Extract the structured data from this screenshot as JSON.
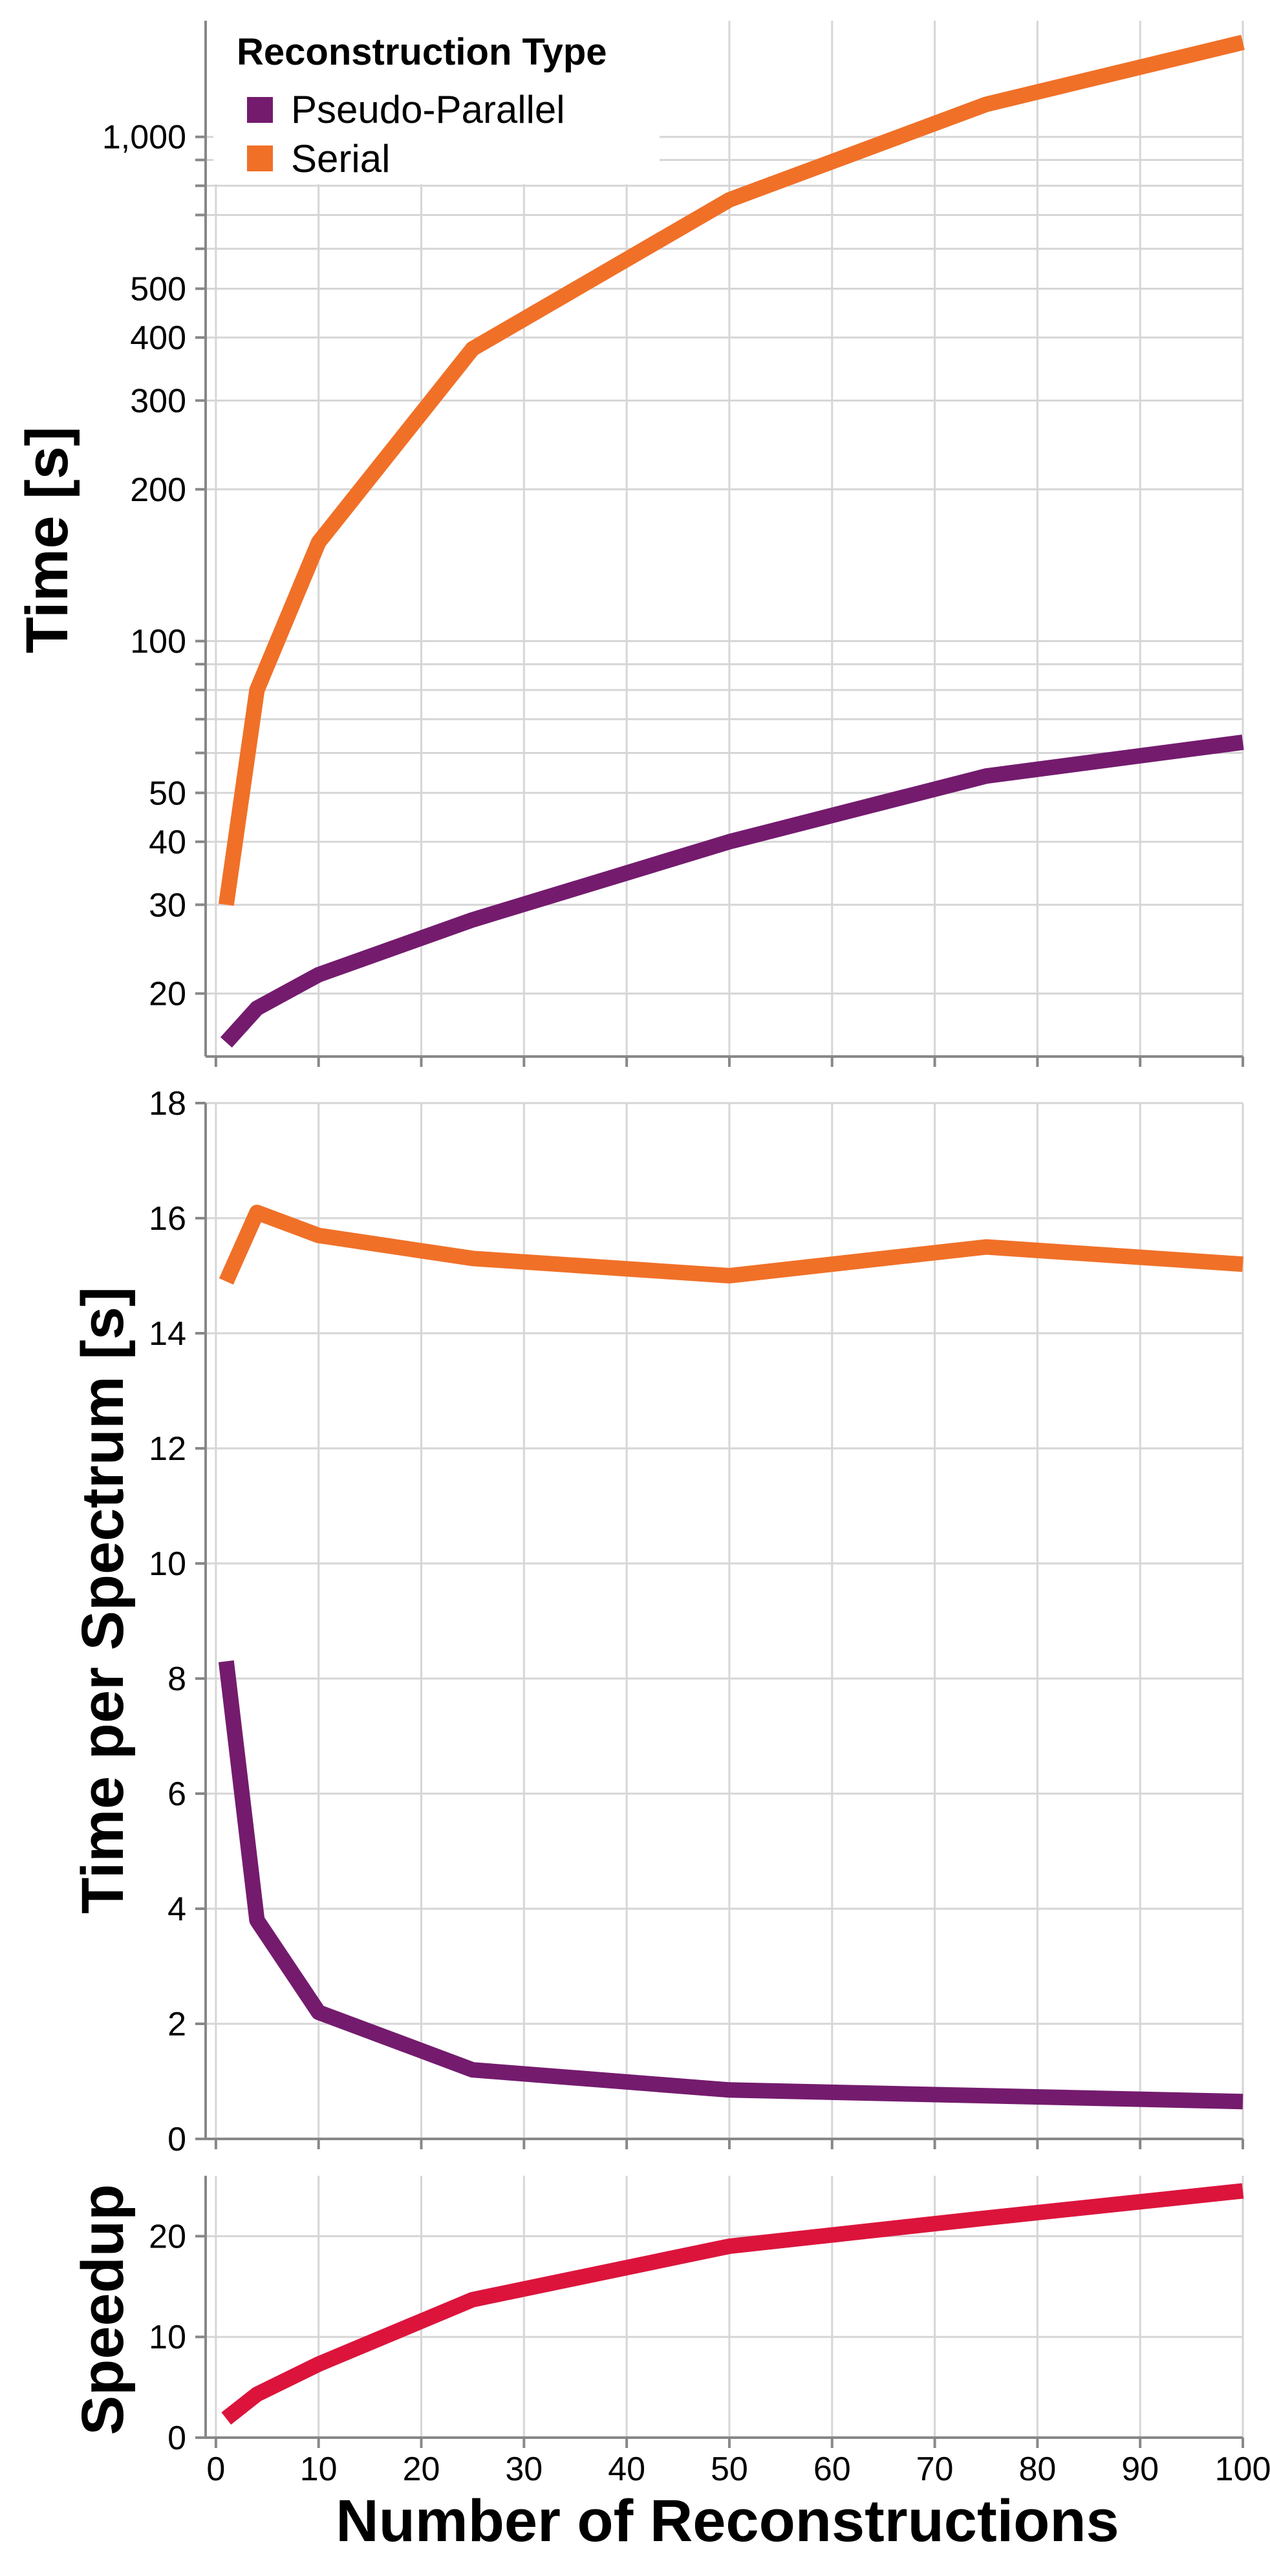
{
  "x_axis": {
    "title": "Number of Reconstructions",
    "ticks": [
      0,
      10,
      20,
      30,
      40,
      50,
      60,
      70,
      80,
      90,
      100
    ],
    "range": [
      -1,
      100
    ]
  },
  "legend": {
    "title": "Reconstruction Type",
    "placement": "top-left",
    "items": [
      {
        "label": "Pseudo-Parallel",
        "color": "#741b6e"
      },
      {
        "label": "Serial",
        "color": "#f07028"
      }
    ]
  },
  "chart_data": [
    {
      "type": "line",
      "ylabel": "Time [s]",
      "yscale": "log",
      "ylim": [
        15,
        1700
      ],
      "ytick_labels": [
        "20",
        "30",
        "40",
        "50",
        "100",
        "200",
        "300",
        "400",
        "500",
        "1,000"
      ],
      "ytick_values": [
        20,
        30,
        40,
        50,
        100,
        200,
        300,
        400,
        500,
        1000
      ],
      "x": [
        1,
        4,
        10,
        25,
        50,
        75,
        100
      ],
      "series": [
        {
          "name": "Pseudo-Parallel",
          "color": "#741b6e",
          "values": [
            16,
            18.7,
            21.8,
            28,
            40,
            54,
            63
          ]
        },
        {
          "name": "Serial",
          "color": "#f07028",
          "values": [
            30,
            80,
            157,
            380,
            750,
            1160,
            1540
          ]
        }
      ]
    },
    {
      "type": "line",
      "ylabel": "Time per Spectrum [s]",
      "ylim": [
        0,
        18
      ],
      "yticks": [
        0,
        2,
        4,
        6,
        8,
        10,
        12,
        14,
        16,
        18
      ],
      "x": [
        1,
        4,
        10,
        25,
        50,
        75,
        100
      ],
      "series": [
        {
          "name": "Pseudo-Parallel",
          "color": "#741b6e",
          "values": [
            8.3,
            3.8,
            2.2,
            1.2,
            0.85,
            0.75,
            0.65
          ]
        },
        {
          "name": "Serial",
          "color": "#f07028",
          "values": [
            14.9,
            16.1,
            15.7,
            15.3,
            15.0,
            15.5,
            15.2
          ]
        }
      ]
    },
    {
      "type": "line",
      "ylabel": "Speedup",
      "ylim": [
        0,
        26
      ],
      "yticks": [
        0,
        10,
        20
      ],
      "x": [
        1,
        4,
        10,
        25,
        50,
        75,
        100
      ],
      "series": [
        {
          "name": "",
          "color": "#dc143c",
          "values": [
            1.9,
            4.3,
            7.3,
            13.7,
            19,
            21.8,
            24.5
          ]
        }
      ]
    }
  ]
}
